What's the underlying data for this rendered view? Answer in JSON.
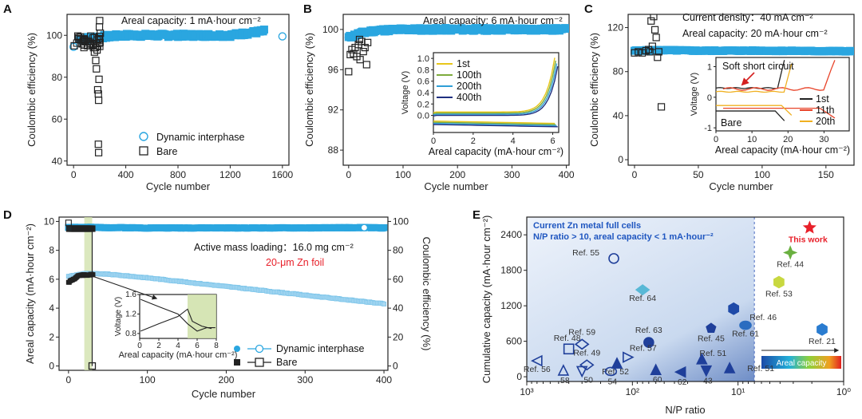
{
  "chart_data": [
    {
      "panel": "A",
      "type": "scatter",
      "annotation": "Areal capacity: 1 mA·hour cm⁻²",
      "xlabel": "Cycle number",
      "ylabel": "Coulombic efficiency (%)",
      "xlim": [
        -50,
        1650
      ],
      "ylim": [
        38,
        110
      ],
      "xticks": [
        0,
        400,
        800,
        1200,
        1600
      ],
      "yticks": [
        40,
        60,
        80,
        100
      ],
      "legend": [
        "Dynamic interphase",
        "Bare"
      ],
      "legend_position": "bottom-right",
      "series": [
        {
          "name": "Dynamic interphase",
          "points": [
            [
              0,
              94.5
            ],
            [
              50,
              98
            ],
            [
              150,
              99
            ],
            [
              400,
              100
            ],
            [
              800,
              100
            ],
            [
              1200,
              100
            ],
            [
              1460,
              102
            ],
            [
              1600,
              99.5
            ]
          ]
        },
        {
          "name": "Bare",
          "points": [
            [
              5,
              95
            ],
            [
              40,
              99
            ],
            [
              80,
              98
            ],
            [
              110,
              97
            ],
            [
              130,
              96
            ],
            [
              160,
              92
            ],
            [
              170,
              88
            ],
            [
              175,
              84
            ],
            [
              180,
              93
            ],
            [
              185,
              74
            ],
            [
              190,
              72
            ],
            [
              192,
              69
            ],
            [
              195,
              79
            ],
            [
              198,
              104
            ],
            [
              200,
              107
            ],
            [
              190,
              48
            ],
            [
              192,
              44
            ],
            [
              160,
              99
            ],
            [
              205,
              101
            ]
          ]
        }
      ]
    },
    {
      "panel": "B",
      "type": "scatter",
      "annotation": "Areal capacity: 6 mA·hour cm⁻²",
      "xlabel": "Cycle number",
      "ylabel": "Coulombic efficiency (%)",
      "xlim": [
        -10,
        405
      ],
      "ylim": [
        86.5,
        101.5
      ],
      "xticks": [
        0,
        100,
        200,
        300,
        400
      ],
      "yticks": [
        88,
        92,
        96,
        100
      ],
      "series": [
        {
          "name": "Dynamic interphase",
          "points": [
            [
              0,
              99.2
            ],
            [
              20,
              99.6
            ],
            [
              50,
              99.9
            ],
            [
              100,
              100
            ],
            [
              200,
              100
            ],
            [
              300,
              100
            ],
            [
              400,
              100
            ]
          ]
        },
        {
          "name": "Bare",
          "points": [
            [
              0,
              95.8
            ],
            [
              3,
              97.5
            ],
            [
              6,
              98
            ],
            [
              9,
              97.6
            ],
            [
              12,
              98.2
            ],
            [
              15,
              97.3
            ],
            [
              18,
              98.5
            ],
            [
              21,
              97
            ],
            [
              24,
              98.8
            ],
            [
              27,
              97.8
            ],
            [
              30,
              98.2
            ],
            [
              33,
              96.5
            ],
            [
              35,
              98.7
            ],
            [
              20,
              99
            ]
          ]
        }
      ],
      "inset": {
        "type": "line",
        "xlabel": "Areal capacity (mA·hour cm⁻²)",
        "ylabel": "Voltage (V)",
        "xlim": [
          0,
          6.3
        ],
        "ylim": [
          -0.3,
          1.1
        ],
        "xticks": [
          0,
          2,
          4,
          6
        ],
        "yticks": [
          0.0,
          0.2,
          0.4,
          0.6,
          0.8,
          1.0
        ],
        "series": [
          {
            "name": "1st",
            "color": "#e8c61a"
          },
          {
            "name": "100th",
            "color": "#7dab3c"
          },
          {
            "name": "200th",
            "color": "#2f9fd6"
          },
          {
            "name": "400th",
            "color": "#1f2f80"
          }
        ]
      }
    },
    {
      "panel": "C",
      "type": "scatter",
      "annotation_1": "Current density：40 mA cm⁻²",
      "annotation_2": "Areal capacity: 20 mA·hour cm⁻²",
      "xlabel": "Cycle number",
      "ylabel": "Coulombic efficiency (%)",
      "xlim": [
        -5,
        172
      ],
      "ylim": [
        -5,
        132
      ],
      "xticks": [
        0,
        50,
        100,
        150
      ],
      "yticks": [
        0,
        40,
        80,
        120
      ],
      "series": [
        {
          "name": "Dynamic interphase",
          "points": [
            [
              0,
              99
            ],
            [
              20,
              99.5
            ],
            [
              50,
              99
            ],
            [
              100,
              99
            ],
            [
              170,
              98.5
            ]
          ]
        },
        {
          "name": "Bare",
          "points": [
            [
              0,
              97
            ],
            [
              3,
              98
            ],
            [
              6,
              97
            ],
            [
              9,
              99
            ],
            [
              11,
              100
            ],
            [
              13,
              126
            ],
            [
              15,
              130
            ],
            [
              16,
              118
            ],
            [
              17,
              111
            ],
            [
              14,
              103
            ],
            [
              18,
              93
            ],
            [
              19,
              98
            ],
            [
              21,
              48
            ],
            [
              12,
              98
            ]
          ]
        }
      ],
      "inset": {
        "type": "line",
        "xlabel": "Areal capacity (mA·hour cm⁻²)",
        "ylabel": "Voltage (V)",
        "xlim": [
          0,
          37
        ],
        "ylim": [
          -1.1,
          1.3
        ],
        "xticks": [
          0,
          10,
          20,
          30
        ],
        "yticks": [
          -1,
          0,
          1
        ],
        "annotation": "Soft short circuit",
        "label_bare": "Bare",
        "series": [
          {
            "name": "1st",
            "color": "#222222"
          },
          {
            "name": "11th",
            "color": "#e8442a"
          },
          {
            "name": "20th",
            "color": "#f0b020"
          }
        ]
      }
    },
    {
      "panel": "D",
      "type": "scatter",
      "annotation_1": "Active mass loading：16.0 mg cm⁻²",
      "annotation_2": "20-μm Zn foil",
      "xlabel": "Cycle number",
      "ylabel": "Areal capacity (mA·hour cm⁻²)",
      "ylabel_right": "Coulombic efficiency (%)",
      "xlim": [
        -12,
        405
      ],
      "ylim": [
        -0.3,
        10.3
      ],
      "ylim_right": [
        -3,
        103
      ],
      "xticks": [
        0,
        100,
        200,
        300,
        400
      ],
      "yticks": [
        0,
        2,
        4,
        6,
        8,
        10
      ],
      "yticks_right": [
        0,
        20,
        40,
        60,
        80,
        100
      ],
      "legend": [
        "Dynamic interphase",
        "Bare"
      ],
      "series": [
        {
          "name": "Dynamic interphase",
          "capacity": [
            [
              0,
              6.2
            ],
            [
              20,
              6.4
            ],
            [
              50,
              6.35
            ],
            [
              100,
              6.1
            ],
            [
              200,
              5.5
            ],
            [
              300,
              4.9
            ],
            [
              400,
              4.3
            ]
          ],
          "ce": [
            [
              0,
              96
            ],
            [
              100,
              95.5
            ],
            [
              200,
              95.5
            ],
            [
              300,
              95.5
            ],
            [
              375,
              95.7
            ],
            [
              400,
              95.5
            ]
          ]
        },
        {
          "name": "Bare",
          "capacity": [
            [
              0,
              5.8
            ],
            [
              10,
              6.1
            ],
            [
              20,
              6.2
            ],
            [
              30,
              6.3
            ]
          ],
          "ce": [
            [
              0,
              99
            ],
            [
              5,
              95
            ],
            [
              30,
              95
            ],
            [
              30,
              0
            ]
          ]
        }
      ],
      "inset": {
        "type": "line",
        "xlabel": "Areal capacity (mA·hour cm⁻²)",
        "ylabel": "Voltage (V)",
        "xlim": [
          0,
          8
        ],
        "ylim": [
          0.7,
          1.6
        ],
        "xticks": [
          0,
          2,
          4,
          6,
          8
        ],
        "yticks": [
          0.8,
          1.2,
          1.6
        ]
      }
    },
    {
      "panel": "E",
      "type": "scatter",
      "box_text_1": "Current Zn metal full cells",
      "box_text_2": "N/P ratio > 10, areal capacity < 1 mA·hour⁻²",
      "xlabel": "N/P ratio",
      "ylabel": "Cumulative capacity (mA·hour cm⁻²)",
      "x_axis": "log, reversed",
      "xlim": [
        1000,
        1
      ],
      "x_tick_labels": [
        "10³",
        "10²",
        "10¹",
        "10⁰"
      ],
      "ylim": [
        -80,
        2700
      ],
      "yticks": [
        0,
        600,
        1200,
        1800,
        2400
      ],
      "colorbar_label": "Areal capacity",
      "highlight": {
        "label": "This work",
        "np": 2.1,
        "value": 2520,
        "color": "#e8202a"
      },
      "points": [
        {
          "ref": "Ref. 55",
          "np": 150,
          "value": 2000
        },
        {
          "ref": "Ref. 64",
          "np": 80,
          "value": 1470
        },
        {
          "ref": "Ref. 44",
          "np": 3.2,
          "value": 2100
        },
        {
          "ref": "Ref. 53",
          "np": 4.1,
          "value": 1600
        },
        {
          "ref": "Ref. 46",
          "np": 11,
          "value": 1150
        },
        {
          "ref": "Ref. 61",
          "np": 8.5,
          "value": 870
        },
        {
          "ref": "Ref. 45",
          "np": 18,
          "value": 820
        },
        {
          "ref": "Ref. 21",
          "np": 1.6,
          "value": 800
        },
        {
          "ref": "Ref. 63",
          "np": 70,
          "value": 580
        },
        {
          "ref": "Ref. 48",
          "np": 400,
          "value": 470
        },
        {
          "ref": "Ref. 59",
          "np": 300,
          "value": 550
        },
        {
          "ref": "Ref. 49",
          "np": 270,
          "value": 200
        },
        {
          "ref": "Ref. 57",
          "np": 110,
          "value": 330
        },
        {
          "ref": "Ref. 52",
          "np": 140,
          "value": 230
        },
        {
          "ref": "Ref. 56",
          "np": 800,
          "value": 270
        },
        {
          "ref": "58",
          "np": 450,
          "value": 110
        },
        {
          "ref": "50",
          "np": 300,
          "value": 90
        },
        {
          "ref": "54",
          "np": 160,
          "value": 90
        },
        {
          "ref": "60",
          "np": 60,
          "value": 120
        },
        {
          "ref": "62",
          "np": 35,
          "value": 80
        },
        {
          "ref": "43",
          "np": 20,
          "value": 100
        },
        {
          "ref": "Ref. 51",
          "np": 22,
          "value": 300
        },
        {
          "ref": "Ref. 51",
          "np": 12,
          "value": 150
        }
      ]
    }
  ]
}
